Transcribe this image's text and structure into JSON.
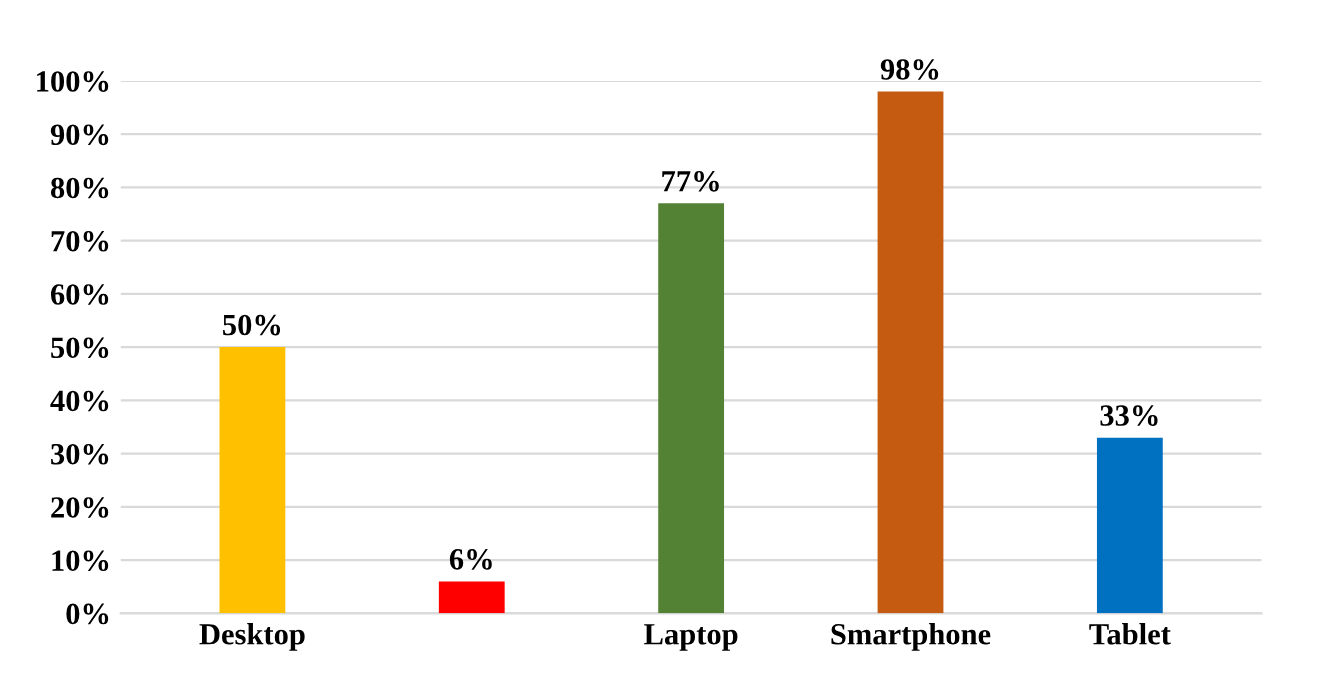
{
  "chart_data": {
    "type": "bar",
    "categories": [
      "Desktop",
      null,
      "Laptop",
      "Smartphone",
      "Tablet"
    ],
    "values": [
      50,
      6,
      77,
      98,
      33
    ],
    "colors": [
      "#ffc000",
      "#ff0000",
      "#548235",
      "#c55a11",
      "#0070c0"
    ],
    "value_labels": [
      "50%",
      "6%",
      "77%",
      "98%",
      "33%"
    ],
    "ylim": [
      0,
      100
    ],
    "yticks": [
      {
        "value": 0,
        "label": "0%"
      },
      {
        "value": 10,
        "label": "10%"
      },
      {
        "value": 20,
        "label": "20%"
      },
      {
        "value": 30,
        "label": "30%"
      },
      {
        "value": 40,
        "label": "40%"
      },
      {
        "value": 50,
        "label": "50%"
      },
      {
        "value": 60,
        "label": "60%"
      },
      {
        "value": 70,
        "label": "70%"
      },
      {
        "value": 80,
        "label": "80%"
      },
      {
        "value": 90,
        "label": "90%"
      },
      {
        "value": 100,
        "label": "100%"
      }
    ],
    "grid": "y",
    "legend": false
  }
}
